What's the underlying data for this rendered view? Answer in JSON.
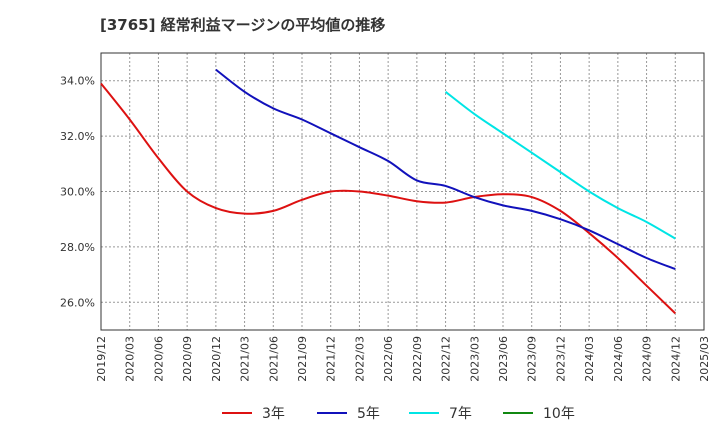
{
  "chart_data": {
    "type": "line",
    "title": "[3765]  経常利益マージンの平均値の推移",
    "xlabel": "",
    "ylabel": "",
    "x": [
      "2019/12",
      "2020/03",
      "2020/06",
      "2020/09",
      "2020/12",
      "2021/03",
      "2021/06",
      "2021/09",
      "2021/12",
      "2022/03",
      "2022/06",
      "2022/09",
      "2022/12",
      "2023/03",
      "2023/06",
      "2023/09",
      "2023/12",
      "2024/03",
      "2024/06",
      "2024/09",
      "2024/12",
      "2025/03"
    ],
    "ylim": [
      25.0,
      35.0
    ],
    "yticks": [
      26.0,
      28.0,
      30.0,
      32.0,
      34.0
    ],
    "ytick_labels": [
      "26.0%",
      "28.0%",
      "30.0%",
      "32.0%",
      "34.0%"
    ],
    "grid": true,
    "legend_position": "bottom",
    "series": [
      {
        "name": "3年",
        "color": "#dd1111",
        "values": [
          33.9,
          32.6,
          31.2,
          30.0,
          29.4,
          29.2,
          29.3,
          29.7,
          30.0,
          30.0,
          29.85,
          29.65,
          29.6,
          29.8,
          29.9,
          29.8,
          29.3,
          28.5,
          27.6,
          26.6,
          25.6,
          null
        ]
      },
      {
        "name": "5年",
        "color": "#1111bb",
        "values": [
          null,
          null,
          null,
          null,
          34.4,
          33.6,
          33.0,
          32.6,
          32.1,
          31.6,
          31.1,
          30.4,
          30.2,
          29.8,
          29.5,
          29.3,
          29.0,
          28.6,
          28.1,
          27.6,
          27.2,
          null
        ]
      },
      {
        "name": "7年",
        "color": "#00e5e5",
        "values": [
          null,
          null,
          null,
          null,
          null,
          null,
          null,
          null,
          null,
          null,
          null,
          null,
          33.6,
          32.8,
          32.1,
          31.4,
          30.7,
          30.0,
          29.4,
          28.9,
          28.3,
          null
        ]
      },
      {
        "name": "10年",
        "color": "#118811",
        "values": [
          null,
          null,
          null,
          null,
          null,
          null,
          null,
          null,
          null,
          null,
          null,
          null,
          null,
          null,
          null,
          null,
          null,
          null,
          null,
          null,
          null,
          null
        ]
      }
    ]
  }
}
